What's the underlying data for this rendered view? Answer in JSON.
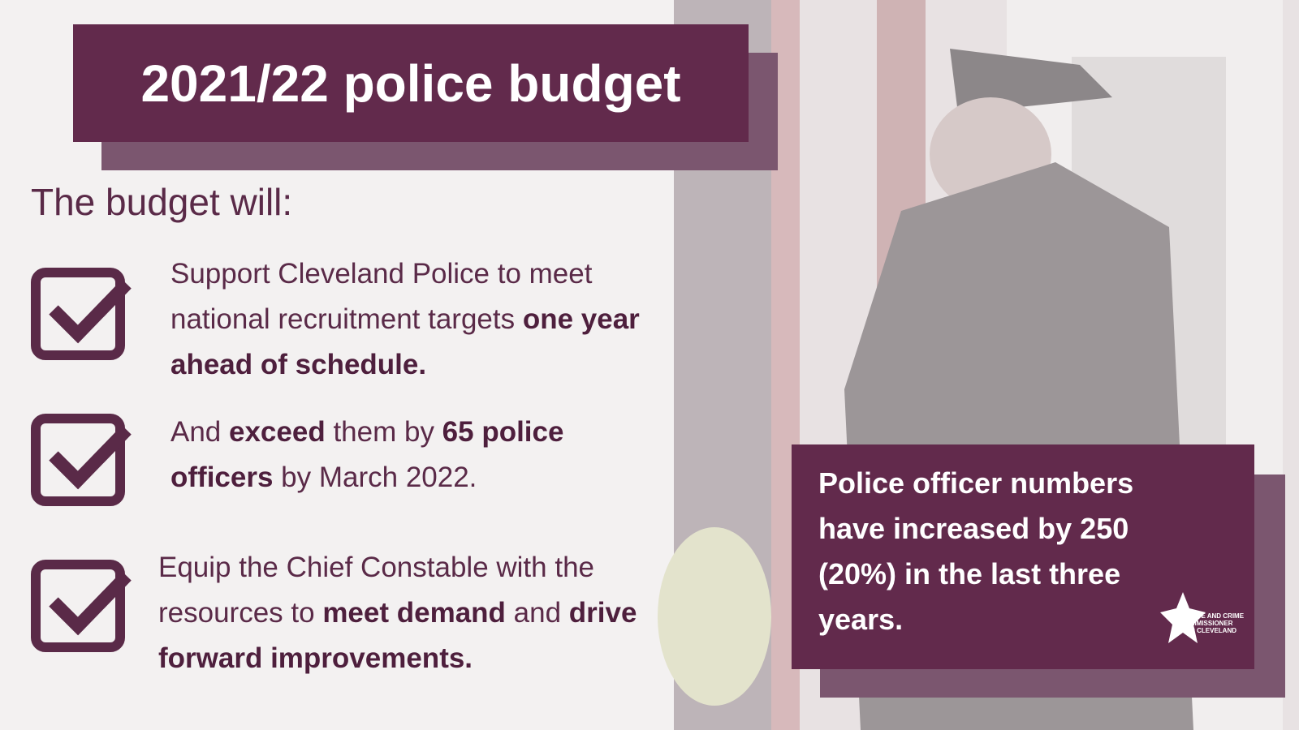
{
  "header": {
    "title": "2021/22 police budget"
  },
  "intro": "The budget will:",
  "items": [
    {
      "segments": [
        {
          "text": "Support Cleveland Police to meet national recruitment targets ",
          "bold": false
        },
        {
          "text": "one year ahead of schedule.",
          "bold": true
        }
      ]
    },
    {
      "segments": [
        {
          "text": "And ",
          "bold": false
        },
        {
          "text": "exceed",
          "bold": true
        },
        {
          "text": " them by ",
          "bold": false
        },
        {
          "text": "65 police officers",
          "bold": true
        },
        {
          "text": " by March 2022.",
          "bold": false
        }
      ]
    },
    {
      "segments": [
        {
          "text": "Equip the Chief Constable with the resources to ",
          "bold": false
        },
        {
          "text": "meet demand",
          "bold": true
        },
        {
          "text": " and ",
          "bold": false
        },
        {
          "text": "drive forward improvements.",
          "bold": true
        }
      ]
    }
  ],
  "callout": {
    "text": "Police officer numbers have increased by 250 (20%) in the last three years."
  },
  "logo": {
    "lines": [
      "POLICE AND CRIME",
      "COMMISSIONER",
      "FOR CLEVELAND"
    ]
  }
}
